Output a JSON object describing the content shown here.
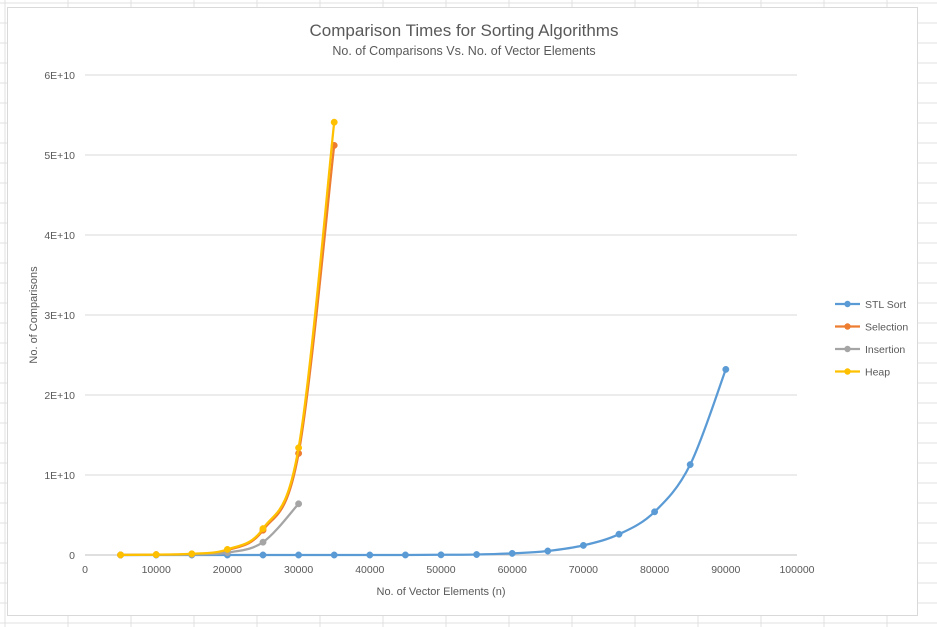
{
  "chart_data": {
    "type": "line",
    "title": "Comparison Times for Sorting Algorithms",
    "subtitle": "No. of Comparisons Vs. No. of Vector Elements",
    "xlabel": "No. of Vector Elements (n)",
    "ylabel": "No. of Comparisons",
    "xlim": [
      0,
      100000
    ],
    "ylim": [
      0,
      60000000000
    ],
    "x_ticks": [
      0,
      10000,
      20000,
      30000,
      40000,
      50000,
      60000,
      70000,
      80000,
      90000,
      100000
    ],
    "x_tick_labels": [
      "0",
      "10000",
      "20000",
      "30000",
      "40000",
      "50000",
      "60000",
      "70000",
      "80000",
      "90000",
      "100000"
    ],
    "y_ticks": [
      0,
      10000000000,
      20000000000,
      30000000000,
      40000000000,
      50000000000,
      60000000000
    ],
    "y_tick_labels": [
      "0",
      "1E+10",
      "2E+10",
      "3E+10",
      "4E+10",
      "5E+10",
      "6E+10"
    ],
    "grid": true,
    "legend_position": "right",
    "smooth": true,
    "series": [
      {
        "name": "STL Sort",
        "color": "#5b9bd5",
        "x": [
          5000,
          10000,
          15000,
          20000,
          25000,
          30000,
          35000,
          40000,
          45000,
          50000,
          55000,
          60000,
          65000,
          70000,
          75000,
          80000,
          85000,
          90000
        ],
        "y": [
          0,
          0,
          0,
          0,
          0,
          0,
          0,
          0,
          5000000,
          20000000,
          60000000,
          200000000,
          500000000,
          1200000000,
          2600000000,
          5400000000,
          11300000000,
          23200000000
        ]
      },
      {
        "name": "Selection",
        "color": "#ed7d31",
        "x": [
          5000,
          10000,
          15000,
          20000,
          25000,
          30000,
          35000
        ],
        "y": [
          12000000,
          50000000,
          120000000,
          600000000,
          3100000000,
          12700000000,
          51200000000
        ]
      },
      {
        "name": "Insertion",
        "color": "#a5a5a5",
        "x": [
          5000,
          10000,
          15000,
          20000,
          25000,
          30000
        ],
        "y": [
          6000000,
          25000000,
          60000000,
          300000000,
          1600000000,
          6400000000
        ]
      },
      {
        "name": "Heap",
        "color": "#ffc000",
        "x": [
          5000,
          10000,
          15000,
          20000,
          25000,
          30000,
          35000
        ],
        "y": [
          12000000,
          50000000,
          150000000,
          700000000,
          3300000000,
          13400000000,
          54100000000
        ]
      }
    ]
  }
}
